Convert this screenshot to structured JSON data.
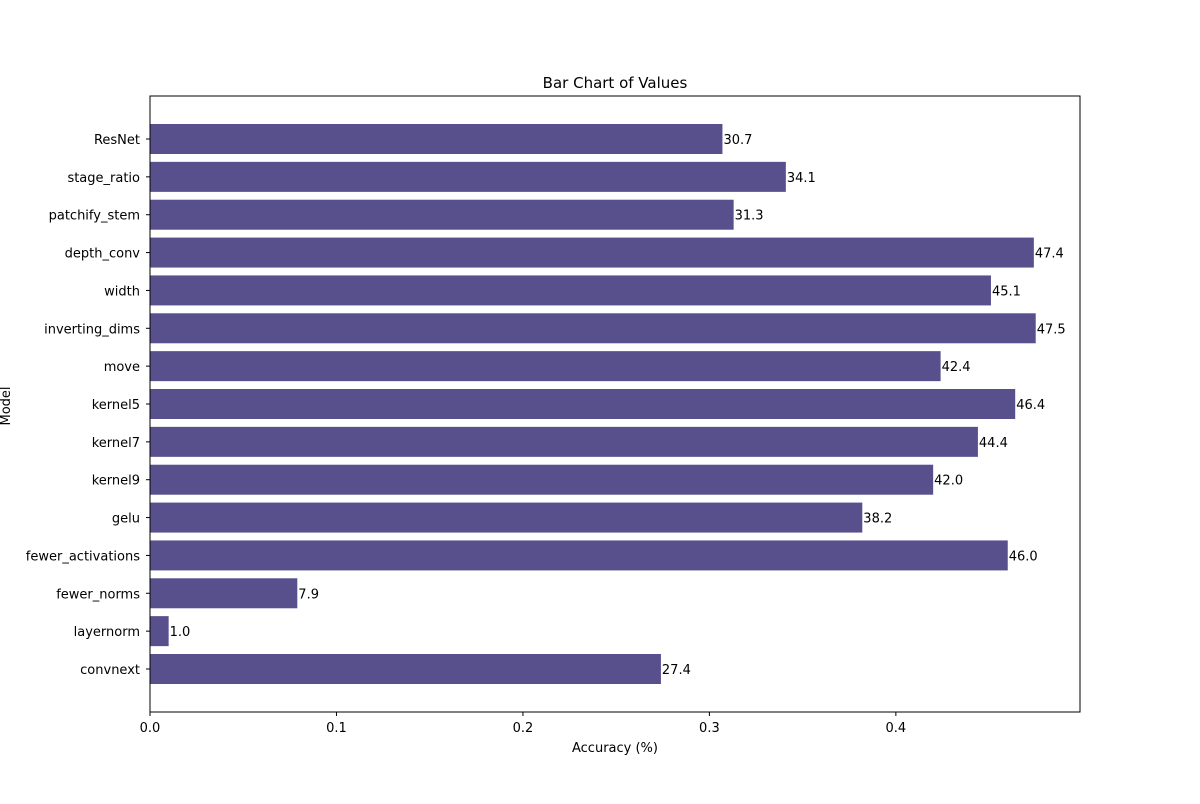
{
  "chart_data": {
    "type": "bar",
    "orientation": "horizontal",
    "title": "Bar Chart of Values",
    "xlabel": "Accuracy (%)",
    "ylabel": "Model",
    "categories": [
      "ResNet",
      "stage_ratio",
      "patchify_stem",
      "depth_conv",
      "width",
      "inverting_dims",
      "move",
      "kernel5",
      "kernel7",
      "kernel9",
      "gelu",
      "fewer_activations",
      "fewer_norms",
      "layernorm",
      "convnext"
    ],
    "values": [
      0.307,
      0.341,
      0.313,
      0.474,
      0.451,
      0.475,
      0.424,
      0.464,
      0.444,
      0.42,
      0.382,
      0.46,
      0.079,
      0.01,
      0.274
    ],
    "value_labels": [
      "30.7",
      "34.1",
      "31.3",
      "47.4",
      "45.1",
      "47.5",
      "42.4",
      "46.4",
      "44.4",
      "42.0",
      "38.2",
      "46.0",
      "7.9",
      "1.0",
      "27.4"
    ],
    "xlim": [
      0,
      0.49875
    ],
    "xticks": [
      0.0,
      0.1,
      0.2,
      0.3,
      0.4
    ],
    "xtick_labels": [
      "0.0",
      "0.1",
      "0.2",
      "0.3",
      "0.4"
    ],
    "grid": false,
    "legend": "none",
    "bar_color": "#58508d"
  }
}
